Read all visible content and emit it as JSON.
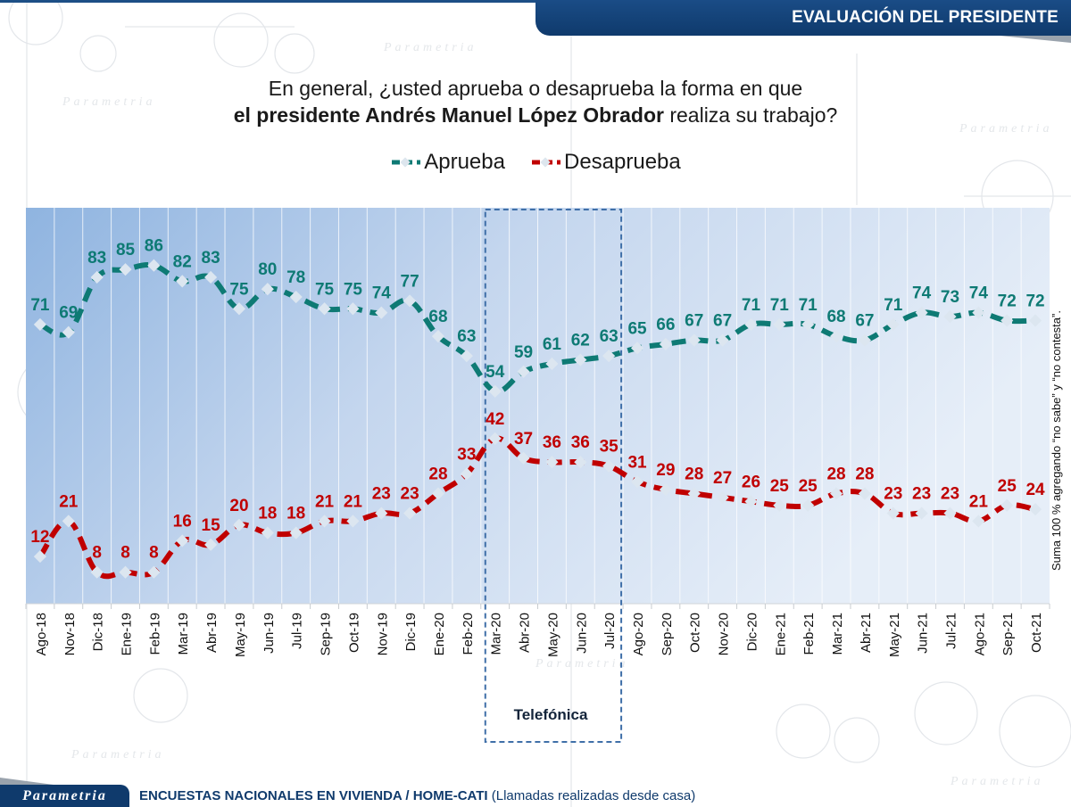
{
  "header": {
    "title": "EVALUACIÓN DEL PRESIDENTE"
  },
  "question": {
    "line1": "En general, ¿usted aprueba o desaprueba la forma en que",
    "line2_bold": "el presidente Andrés Manuel López Obrador",
    "line2_rest": " realiza su trabajo?"
  },
  "watermark_text": "Parametria",
  "side_note": "Suma 100 %  agregando “no sabe” y “no contesta”.",
  "phone_period_label": "Telefónica",
  "footer": {
    "logo": "Parametria",
    "title_bold": "ENCUESTAS NACIONALES EN VIVIENDA / HOME-CATI",
    "title_rest": " (Llamadas realizadas desde casa)"
  },
  "colors": {
    "aprueba": "#0e7a74",
    "desaprueba": "#c00000",
    "header": "#0f3a6c",
    "phone_box": "#3f6fa8"
  },
  "chart_data": {
    "type": "line",
    "title": "En general, ¿usted aprueba o desaprueba la forma en que el presidente Andrés Manuel López Obrador realiza su trabajo?",
    "xlabel": "",
    "ylabel": "",
    "ylim": [
      0,
      100
    ],
    "grid": "vertical",
    "legend": "top-center",
    "categories": [
      "Ago-18",
      "Nov-18",
      "Dic-18",
      "Ene-19",
      "Feb-19",
      "Mar-19",
      "Abr-19",
      "May-19",
      "Jun-19",
      "Jul-19",
      "Sep-19",
      "Oct-19",
      "Nov-19",
      "Dic-19",
      "Ene-20",
      "Feb-20",
      "Mar-20",
      "Abr-20",
      "May-20",
      "Jun-20",
      "Jul-20",
      "Ago-20",
      "Sep-20",
      "Oct-20",
      "Nov-20",
      "Dic-20",
      "Ene-21",
      "Feb-21",
      "Mar-21",
      "Abr-21",
      "May-21",
      "Jun-21",
      "Jul-21",
      "Ago-21",
      "Sep-21",
      "Oct-21"
    ],
    "series": [
      {
        "name": "Aprueba",
        "values": [
          71,
          69,
          83,
          85,
          86,
          82,
          83,
          75,
          80,
          78,
          75,
          75,
          74,
          77,
          68,
          63,
          54,
          59,
          61,
          62,
          63,
          65,
          66,
          67,
          67,
          71,
          71,
          71,
          68,
          67,
          71,
          74,
          73,
          74,
          72,
          72
        ]
      },
      {
        "name": "Desaprueba",
        "values": [
          12,
          21,
          8,
          8,
          8,
          16,
          15,
          20,
          18,
          18,
          21,
          21,
          23,
          23,
          28,
          33,
          42,
          37,
          36,
          36,
          35,
          31,
          29,
          28,
          27,
          26,
          25,
          25,
          28,
          28,
          23,
          23,
          23,
          21,
          25,
          24
        ]
      }
    ],
    "annotations": [
      {
        "type": "dashed-box",
        "from": "Mar-20",
        "to": "Jul-20",
        "label": "Telefónica"
      }
    ]
  }
}
